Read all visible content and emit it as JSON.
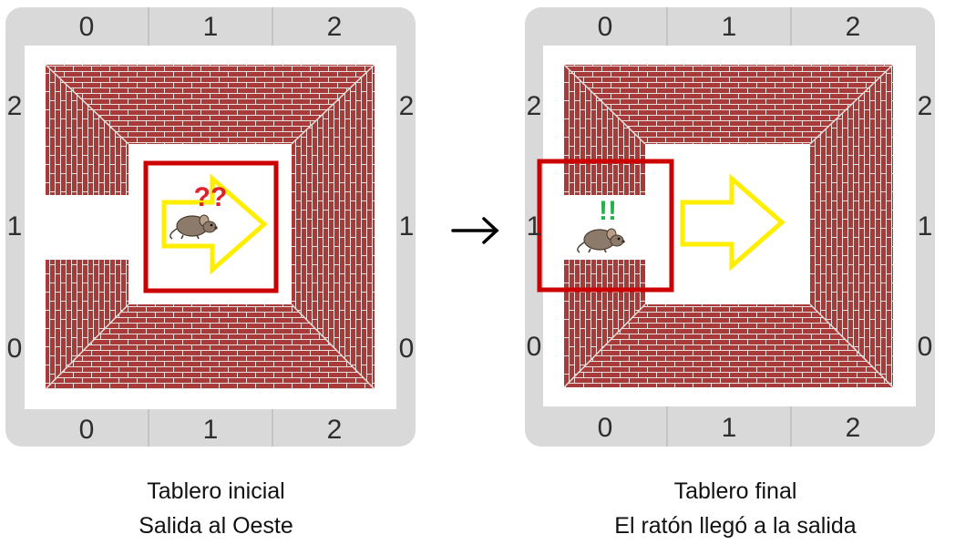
{
  "boards": [
    {
      "caption_line1": "Tablero inicial",
      "caption_line2": "Salida al Oeste",
      "col_labels_top": [
        "0",
        "1",
        "2"
      ],
      "col_labels_bottom": [
        "0",
        "1",
        "2"
      ],
      "row_labels_left": [
        "2",
        "1",
        "0"
      ],
      "row_labels_right": [
        "2",
        "1",
        "0"
      ],
      "mouse_mark": "??"
    },
    {
      "caption_line1": "Tablero final",
      "caption_line2": "El ratón llegó a la salida",
      "col_labels_top": [
        "0",
        "1",
        "2"
      ],
      "col_labels_bottom": [
        "0",
        "1",
        "2"
      ],
      "row_labels_left": [
        "2",
        "1",
        "0"
      ],
      "row_labels_right": [
        "2",
        "1",
        "0"
      ],
      "mouse_mark": "!!"
    }
  ],
  "transition_arrow": "→",
  "colors": {
    "frame": "#d9d9d9",
    "brick": "#a83a3a",
    "mortar": "#e8e0dc",
    "highlight": "#cc0000",
    "arrow": "#ffee00",
    "question_mark": "#e0202a",
    "exclamation_mark": "#22b14c"
  },
  "icons": {
    "mouse": "mouse-icon",
    "direction": "yellow-arrow-icon",
    "transition": "right-arrow-icon"
  }
}
